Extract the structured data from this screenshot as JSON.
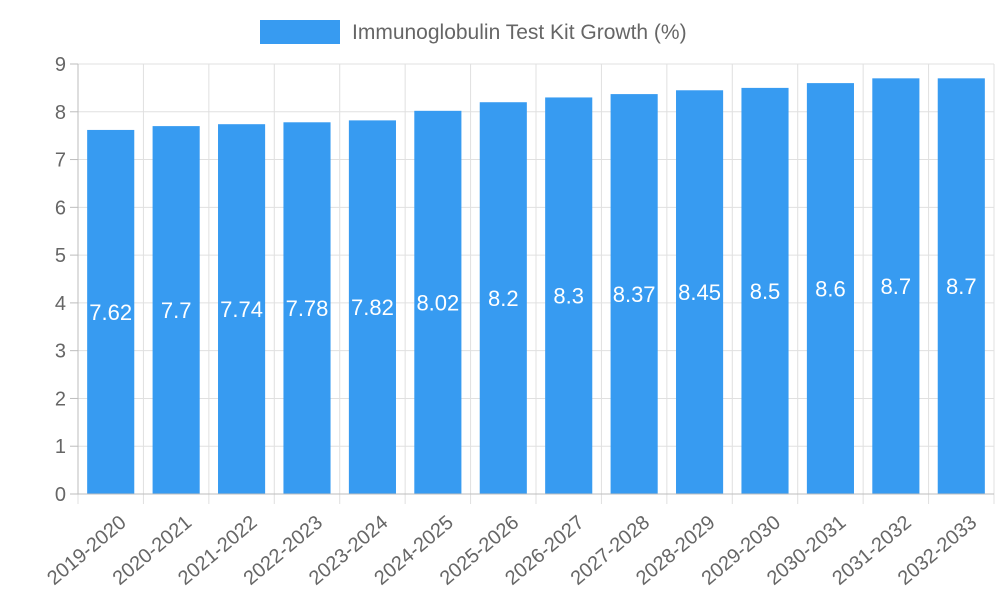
{
  "chart_data": {
    "type": "bar",
    "title": "",
    "xlabel": "",
    "ylabel": "",
    "categories": [
      "2019-2020",
      "2020-2021",
      "2021-2022",
      "2022-2023",
      "2023-2024",
      "2024-2025",
      "2025-2026",
      "2026-2027",
      "2027-2028",
      "2028-2029",
      "2029-2030",
      "2030-2031",
      "2031-2032",
      "2032-2033"
    ],
    "series": [
      {
        "name": "Immunoglobulin Test Kit Growth (%)",
        "values": [
          7.62,
          7.7,
          7.74,
          7.78,
          7.82,
          8.02,
          8.2,
          8.3,
          8.37,
          8.45,
          8.5,
          8.6,
          8.7,
          8.7
        ],
        "color": "#379bf1"
      }
    ],
    "ylim": [
      0,
      9
    ],
    "yticks": [
      0,
      1,
      2,
      3,
      4,
      5,
      6,
      7,
      8,
      9
    ],
    "grid": true,
    "legend_position": "top-center",
    "data_labels": [
      "7.62",
      "7.7",
      "7.74",
      "7.78",
      "7.82",
      "8.02",
      "8.2",
      "8.3",
      "8.37",
      "8.45",
      "8.5",
      "8.6",
      "8.7",
      "8.7"
    ],
    "colors": {
      "grid": "#e0e0e0",
      "axis": "#bdbdbd",
      "text": "#666666",
      "label": "#ffffff"
    }
  }
}
